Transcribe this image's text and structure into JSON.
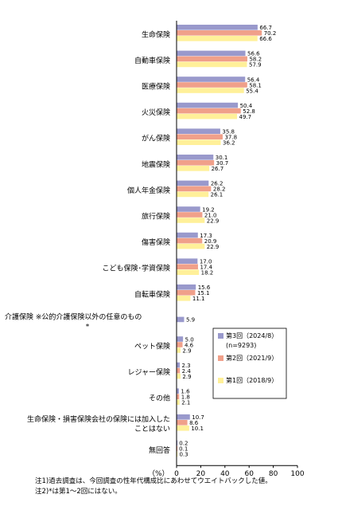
{
  "chart_data": {
    "type": "bar",
    "orientation": "horizontal",
    "categories": [
      "生命保険",
      "自動車保険",
      "医療保険",
      "火災保険",
      "がん保険",
      "地震保険",
      "個人年金保険",
      "旅行保険",
      "傷害保険",
      "こども保険･学資保険",
      "自転車保険",
      "介護保険 ※公的介護保険以外の任意のもの",
      "ペット保険",
      "レジャー保険",
      "その他",
      "生命保険・損害保険会社の保険には加入した",
      "無回答"
    ],
    "category_label_extra": {
      "11": "*",
      "15": "ことはない"
    },
    "series": [
      {
        "name": "第3回（2024/8）",
        "color": "#9999cc",
        "values": [
          66.7,
          56.6,
          56.4,
          50.4,
          35.8,
          30.1,
          26.2,
          19.2,
          17.3,
          17.0,
          15.6,
          5.9,
          5.0,
          2.3,
          1.6,
          10.7,
          0.2
        ]
      },
      {
        "name": "第2回（2021/9）",
        "color": "#f0a08a",
        "values": [
          70.2,
          58.2,
          58.1,
          52.8,
          37.8,
          30.7,
          28.2,
          21.0,
          20.9,
          17.4,
          15.1,
          null,
          4.6,
          2.4,
          1.8,
          8.6,
          0.1
        ]
      },
      {
        "name": "第1回（2018/9）",
        "color": "#fff099",
        "values": [
          66.6,
          57.9,
          55.4,
          49.7,
          36.2,
          26.7,
          26.1,
          22.9,
          22.9,
          18.2,
          11.1,
          null,
          2.9,
          2.9,
          2.1,
          10.1,
          0.3
        ]
      }
    ],
    "value_labels": [
      [
        "66.7",
        "70.2",
        "66.6"
      ],
      [
        "56.6",
        "58.2",
        "57.9"
      ],
      [
        "56.4",
        "58.1",
        "55.4"
      ],
      [
        "50.4",
        "52.8",
        "49.7"
      ],
      [
        "35.8",
        "37.8",
        "36.2"
      ],
      [
        "30.1",
        "30.7",
        "26.7"
      ],
      [
        "26.2",
        "28.2",
        "26.1"
      ],
      [
        "19.2",
        "21.0",
        "22.9"
      ],
      [
        "17.3",
        "20.9",
        "22.9"
      ],
      [
        "17.0",
        "17.4",
        "18.2"
      ],
      [
        "15.6",
        "15.1",
        "11.1"
      ],
      [
        "5.9",
        null,
        null
      ],
      [
        "5.0",
        "4.6",
        "2.9"
      ],
      [
        "2.3",
        "2.4",
        "2.9"
      ],
      [
        "1.6",
        "1.8",
        "2.1"
      ],
      [
        "10.7",
        "8.6",
        "10.1"
      ],
      [
        "0.2",
        "0.1",
        "0.3"
      ]
    ],
    "xlim": [
      0,
      100
    ],
    "xticks": [
      "0",
      "20",
      "40",
      "60",
      "80",
      "100"
    ],
    "xunit": "（%）",
    "legend_note": "(n=9293)",
    "legend_position": "right-lower",
    "grid": false
  },
  "notes": [
    "注1)過去調査は、今回調査の性年代構成比にあわせてウエイトバックした値。",
    "注2)*は第1～2回にはない。"
  ]
}
